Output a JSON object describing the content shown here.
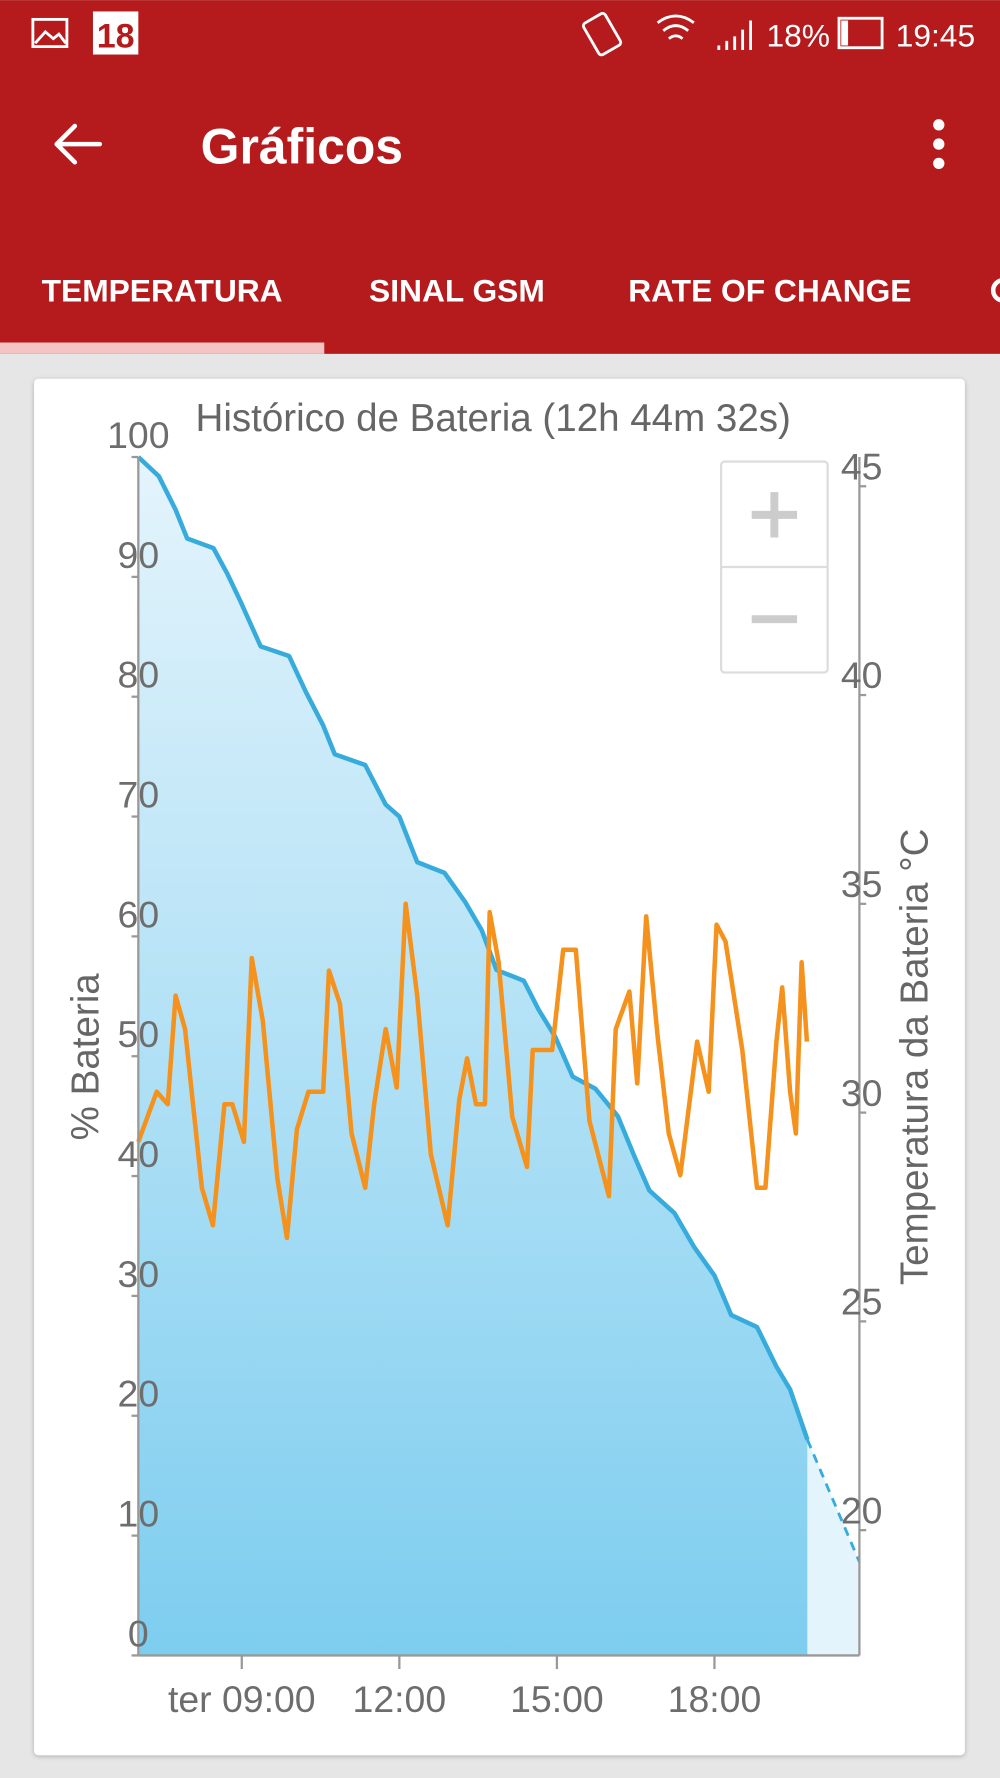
{
  "status_bar": {
    "date_icon": "18",
    "battery": "18%",
    "time": "19:45"
  },
  "app_bar": {
    "title": "Gráficos"
  },
  "tabs": [
    "TEMPERATURA",
    "SINAL GSM",
    "RATE OF CHANGE"
  ],
  "chart_data": {
    "type": "line",
    "title": "Histórico de Bateria (12h 44m 32s)",
    "y_label": "% Bateria",
    "y2_label": "Temperatura da Bateria °C",
    "xlim": [
      7.03,
      20.76
    ],
    "xticks": [
      {
        "value": 9,
        "label": "ter 09:00"
      },
      {
        "value": 12,
        "label": "12:00"
      },
      {
        "value": 15,
        "label": "15:00"
      },
      {
        "value": 18,
        "label": "18:00"
      }
    ],
    "ylim": [
      0,
      100
    ],
    "yticks": [
      0,
      10,
      20,
      30,
      40,
      50,
      60,
      70,
      80,
      90,
      100
    ],
    "y2lim": [
      17,
      45.7
    ],
    "y2ticks": [
      20,
      25,
      30,
      35,
      40,
      45
    ],
    "grid": false,
    "series": [
      {
        "color": "#37acdc",
        "area": true,
        "x": [
          7.03,
          7.42,
          7.74,
          7.96,
          8.46,
          8.72,
          8.97,
          9.36,
          9.9,
          10.22,
          10.55,
          10.77,
          11.35,
          11.74,
          12.0,
          12.34,
          12.86,
          13.25,
          13.57,
          13.85,
          14.37,
          14.65,
          14.97,
          15.3,
          15.73,
          16.16,
          16.48,
          16.76,
          17.24,
          17.61,
          18.0,
          18.32,
          18.81,
          19.18,
          19.44,
          19.77
        ],
        "values": [
          100,
          98.4,
          95.6,
          93.2,
          92.4,
          90.3,
          88,
          84.2,
          83.4,
          80.4,
          77.6,
          75.2,
          74.3,
          71,
          70,
          66.2,
          65.3,
          62.9,
          60.5,
          57.2,
          56.3,
          53.9,
          51.6,
          48.3,
          47.3,
          45,
          41.6,
          38.8,
          36.9,
          34.1,
          31.7,
          28.4,
          27.4,
          24.1,
          22.2,
          18
        ]
      },
      {
        "color": "#f5921e",
        "axis": "y2",
        "x": [
          7.03,
          7.38,
          7.59,
          7.74,
          7.92,
          8.24,
          8.45,
          8.67,
          8.82,
          9.04,
          9.19,
          9.4,
          9.68,
          9.86,
          10.05,
          10.27,
          10.55,
          10.66,
          10.87,
          11.09,
          11.35,
          11.52,
          11.74,
          11.95,
          12.12,
          12.34,
          12.6,
          12.92,
          13.14,
          13.29,
          13.46,
          13.63,
          13.72,
          13.89,
          14.15,
          14.43,
          14.54,
          14.91,
          15.12,
          15.36,
          15.62,
          15.99,
          16.12,
          16.38,
          16.53,
          16.7,
          16.92,
          17.13,
          17.35,
          17.67,
          17.89,
          18.04,
          18.21,
          18.53,
          18.81,
          18.97,
          19.18,
          19.29,
          19.44,
          19.55,
          19.66,
          19.76
        ],
        "values": [
          29.3,
          30.5,
          30.2,
          32.8,
          32.0,
          28.2,
          27.3,
          30.2,
          30.2,
          29.3,
          33.7,
          32.2,
          28.4,
          27.0,
          29.6,
          30.5,
          30.5,
          33.4,
          32.6,
          29.5,
          28.2,
          30.2,
          32.0,
          30.6,
          35.0,
          32.8,
          29.0,
          27.3,
          30.3,
          31.3,
          30.2,
          30.2,
          34.8,
          33.6,
          29.9,
          28.7,
          31.5,
          31.5,
          33.9,
          33.9,
          29.8,
          28.0,
          32.0,
          32.9,
          30.7,
          34.7,
          31.8,
          29.5,
          28.5,
          31.7,
          30.5,
          34.5,
          34.1,
          31.5,
          28.2,
          28.2,
          31.7,
          33.0,
          30.5,
          29.5,
          33.6,
          31.7
        ]
      },
      {
        "color": "#37acdc",
        "area": true,
        "dashed": true,
        "x": [
          19.77,
          20.76
        ],
        "values": [
          18,
          7.8
        ]
      }
    ]
  }
}
